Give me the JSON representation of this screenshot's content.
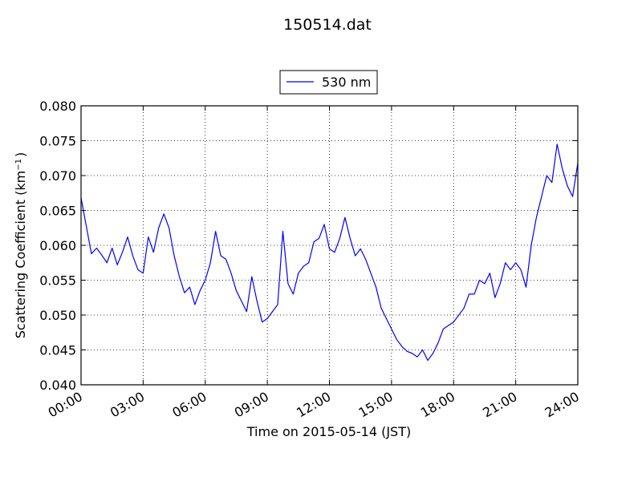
{
  "chart_data": {
    "type": "line",
    "title": "150514.dat",
    "xlabel": "Time on 2015-05-14 (JST)",
    "ylabel_main": "Scattering Coefficient (km",
    "ylabel_sup": "−1",
    "ylabel_end": ")",
    "legend": {
      "position": "top-center",
      "entries": [
        "530 nm"
      ]
    },
    "grid": true,
    "xlim": [
      "00:00",
      "24:00"
    ],
    "ylim": [
      0.04,
      0.08
    ],
    "x_ticks": [
      "00:00",
      "03:00",
      "06:00",
      "09:00",
      "12:00",
      "15:00",
      "18:00",
      "21:00",
      "24:00"
    ],
    "y_ticks": [
      "0.040",
      "0.045",
      "0.050",
      "0.055",
      "0.060",
      "0.065",
      "0.070",
      "0.075",
      "0.080"
    ],
    "series": [
      {
        "name": "530 nm",
        "color": "#0000ff",
        "x": [
          "00:00",
          "00:15",
          "00:30",
          "00:45",
          "01:00",
          "01:15",
          "01:30",
          "01:45",
          "02:00",
          "02:15",
          "02:30",
          "02:45",
          "03:00",
          "03:15",
          "03:30",
          "03:45",
          "04:00",
          "04:15",
          "04:30",
          "04:45",
          "05:00",
          "05:15",
          "05:30",
          "05:45",
          "06:00",
          "06:15",
          "06:30",
          "06:45",
          "07:00",
          "07:15",
          "07:30",
          "07:45",
          "08:00",
          "08:15",
          "08:30",
          "08:45",
          "09:00",
          "09:15",
          "09:30",
          "09:45",
          "10:00",
          "10:15",
          "10:30",
          "10:45",
          "11:00",
          "11:15",
          "11:30",
          "11:45",
          "12:00",
          "12:15",
          "12:30",
          "12:45",
          "13:00",
          "13:15",
          "13:30",
          "13:45",
          "14:00",
          "14:15",
          "14:30",
          "14:45",
          "15:00",
          "15:15",
          "15:30",
          "15:45",
          "16:00",
          "16:15",
          "16:30",
          "16:45",
          "17:00",
          "17:15",
          "17:30",
          "17:45",
          "18:00",
          "18:15",
          "18:30",
          "18:45",
          "19:00",
          "19:15",
          "19:30",
          "19:45",
          "20:00",
          "20:15",
          "20:30",
          "20:45",
          "21:00",
          "21:15",
          "21:30",
          "21:45",
          "22:00",
          "22:15",
          "22:30",
          "22:45",
          "23:00",
          "23:15",
          "23:30",
          "23:45",
          "24:00"
        ],
        "y": [
          0.0668,
          0.0628,
          0.0588,
          0.0596,
          0.0586,
          0.0575,
          0.0596,
          0.0572,
          0.059,
          0.0612,
          0.0585,
          0.0565,
          0.056,
          0.0612,
          0.059,
          0.0625,
          0.0645,
          0.0625,
          0.0585,
          0.0555,
          0.0532,
          0.054,
          0.0515,
          0.0535,
          0.055,
          0.0575,
          0.062,
          0.0585,
          0.058,
          0.056,
          0.0535,
          0.052,
          0.0505,
          0.0555,
          0.052,
          0.049,
          0.0495,
          0.0505,
          0.0515,
          0.062,
          0.0545,
          0.053,
          0.056,
          0.057,
          0.0575,
          0.0605,
          0.061,
          0.063,
          0.0595,
          0.059,
          0.061,
          0.064,
          0.061,
          0.0585,
          0.0595,
          0.058,
          0.056,
          0.054,
          0.051,
          0.0495,
          0.048,
          0.0465,
          0.0455,
          0.0448,
          0.0445,
          0.044,
          0.045,
          0.0435,
          0.0445,
          0.046,
          0.048,
          0.0485,
          0.049,
          0.05,
          0.051,
          0.053,
          0.053,
          0.055,
          0.0545,
          0.056,
          0.0525,
          0.0545,
          0.0575,
          0.0565,
          0.0575,
          0.0565,
          0.054,
          0.06,
          0.064,
          0.067,
          0.07,
          0.069,
          0.0745,
          0.071,
          0.0685,
          0.067,
          0.0718
        ]
      }
    ]
  }
}
